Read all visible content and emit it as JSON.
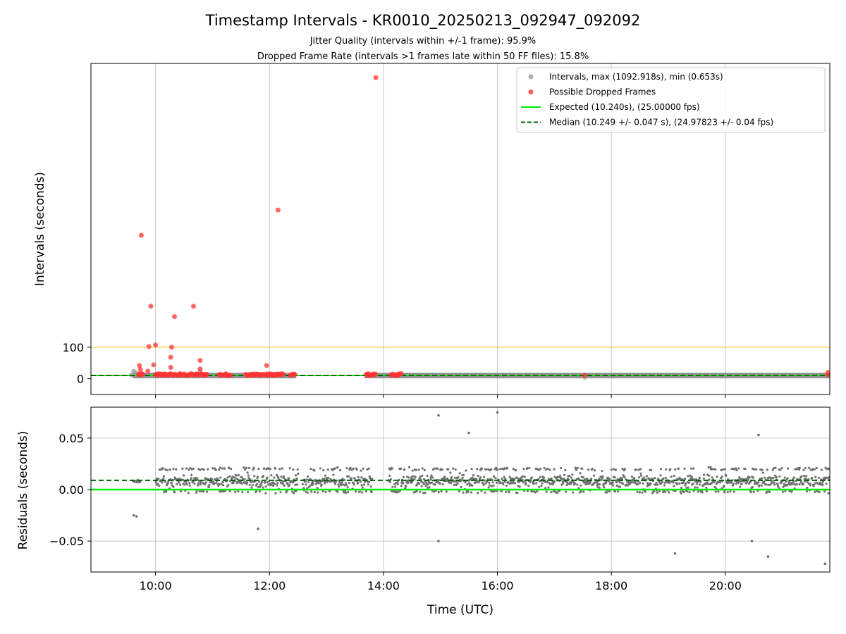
{
  "chart_data": [
    {
      "type": "scatter",
      "title": "Timestamp Intervals - KR0010_20250213_092947_092092",
      "subtitle_lines": [
        "Jitter Quality (intervals within +/-1 frame): 95.9%",
        "Dropped Frame Rate (intervals >1 frames late within 50 FF files): 15.8%"
      ],
      "xlabel": "",
      "ylabel": "Intervals (seconds)",
      "xlim": [
        "08:52",
        "21:50"
      ],
      "ylim": [
        -50,
        1000
      ],
      "yticks": [
        0,
        100
      ],
      "xticks": [
        "10:00",
        "12:00",
        "14:00",
        "16:00",
        "18:00",
        "20:00"
      ],
      "grid": "vertical",
      "reference_line": {
        "y": 100,
        "color": "#f5c542"
      },
      "expected": 10.24,
      "median": 10.249,
      "legend": {
        "position": "top-right",
        "entries": [
          {
            "label": "Intervals, max (1092.918s), min (0.653s)",
            "kind": "marker",
            "color": "#999999"
          },
          {
            "label": "Possible Dropped Frames",
            "kind": "marker",
            "color": "#ff3333"
          },
          {
            "label": "Expected (10.240s), (25.00000 fps)",
            "kind": "line",
            "color": "#00ee00"
          },
          {
            "label": "Median (10.249 +/- 0.047 s), (24.97823 +/- 0.04 fps)",
            "kind": "dashed",
            "color": "#006400"
          }
        ]
      },
      "series": [
        {
          "name": "Possible Dropped Frames",
          "color": "#ff3333",
          "points": [
            [
              "13:52",
              955
            ],
            [
              "09:45",
              455
            ],
            [
              "12:09",
              535
            ],
            [
              "09:55",
              230
            ],
            [
              "10:40",
              230
            ],
            [
              "10:20",
              197
            ],
            [
              "09:53",
              102
            ],
            [
              "10:00",
              107
            ],
            [
              "10:17",
              100
            ],
            [
              "10:16",
              68
            ],
            [
              "10:47",
              58
            ],
            [
              "09:43",
              42
            ],
            [
              "09:58",
              44
            ],
            [
              "10:16",
              36
            ],
            [
              "10:47",
              31
            ],
            [
              "09:44",
              30
            ],
            [
              "09:52",
              24
            ],
            [
              "10:10",
              15
            ],
            [
              "11:57",
              42
            ],
            [
              "11:40",
              14
            ],
            [
              "09:44",
              15
            ],
            [
              "10:05",
              11
            ],
            [
              "10:25",
              11
            ],
            [
              "10:35",
              12
            ],
            [
              "11:15",
              11
            ],
            [
              "11:45",
              11
            ],
            [
              "12:05",
              11
            ],
            [
              "13:45",
              11
            ],
            [
              "14:15",
              11
            ],
            [
              "17:32",
              11
            ],
            [
              "21:48",
              20
            ],
            [
              "21:48",
              12
            ]
          ]
        }
      ]
    },
    {
      "type": "scatter",
      "title": "",
      "xlabel": "Time (UTC)",
      "ylabel": "Residuals (seconds)",
      "xlim": [
        "08:52",
        "21:50"
      ],
      "ylim": [
        -0.08,
        0.08
      ],
      "yticks": [
        "0.05",
        "0.00",
        "−0.05"
      ],
      "xticks": [
        "10:00",
        "12:00",
        "14:00",
        "16:00",
        "18:00",
        "20:00"
      ],
      "grid": "both",
      "expected_residual": 0,
      "median_residual": 0.009,
      "outliers": [
        [
          "14:58",
          0.072
        ],
        [
          "15:30",
          0.055
        ],
        [
          "16:00",
          0.075
        ],
        [
          "14:58",
          -0.05
        ],
        [
          "20:28",
          -0.05
        ],
        [
          "20:35",
          0.053
        ],
        [
          "20:45",
          -0.065
        ],
        [
          "19:07",
          -0.062
        ],
        [
          "21:45",
          -0.072
        ],
        [
          "11:48",
          -0.038
        ],
        [
          "09:37",
          -0.025
        ],
        [
          "09:40",
          -0.026
        ]
      ]
    }
  ]
}
